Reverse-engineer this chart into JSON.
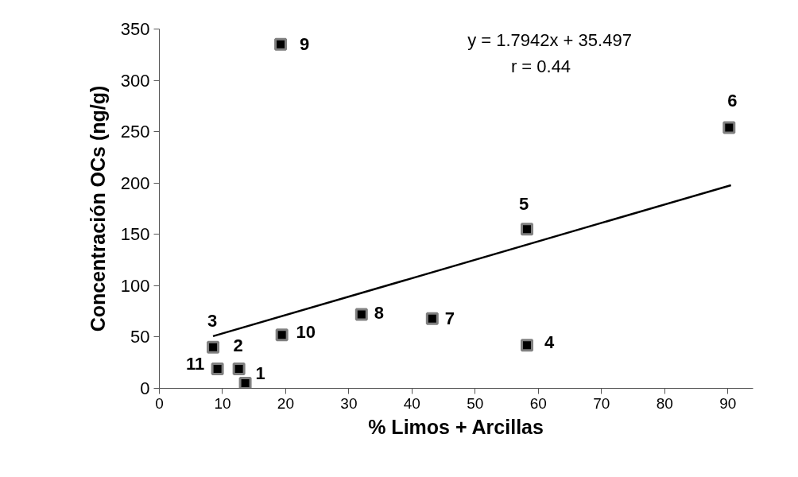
{
  "chart_data": {
    "type": "scatter",
    "xlabel": "% Limos + Arcillas",
    "ylabel": "Concentración OCs (ng/g)",
    "xlim": [
      0,
      94
    ],
    "ylim": [
      0,
      350
    ],
    "xticks": [
      0,
      10,
      20,
      30,
      40,
      50,
      60,
      70,
      80,
      90
    ],
    "yticks": [
      0,
      50,
      100,
      150,
      200,
      250,
      300,
      350
    ],
    "grid": false,
    "series": [
      {
        "marker": "square",
        "color": "#000000",
        "x": [
          13.6,
          12.6,
          8.5,
          58.2,
          58.2,
          90.2,
          43.2,
          32.0,
          19.2,
          19.4,
          9.2
        ],
        "values": [
          5,
          19,
          40,
          42,
          155,
          254,
          68,
          72,
          335,
          52,
          19
        ]
      },
      {
        "type": "line",
        "color": "#000000",
        "x": [
          8.5,
          90.5
        ],
        "values": [
          50.8,
          197.9
        ]
      }
    ],
    "annotations": [
      {
        "text": "1",
        "x": 13.6,
        "y": 5
      },
      {
        "text": "2",
        "x": 12.6,
        "y": 19
      },
      {
        "text": "3",
        "x": 8.5,
        "y": 40
      },
      {
        "text": "4",
        "x": 58.2,
        "y": 42
      },
      {
        "text": "5",
        "x": 58.2,
        "y": 155
      },
      {
        "text": "6",
        "x": 90.2,
        "y": 254
      },
      {
        "text": "7",
        "x": 43.2,
        "y": 68
      },
      {
        "text": "8",
        "x": 32.0,
        "y": 72
      },
      {
        "text": "9",
        "x": 19.2,
        "y": 335
      },
      {
        "text": "10",
        "x": 19.4,
        "y": 52
      },
      {
        "text": "11",
        "x": 9.2,
        "y": 19
      },
      "y = 1.7942x + 35.497",
      "r = 0.44"
    ]
  }
}
